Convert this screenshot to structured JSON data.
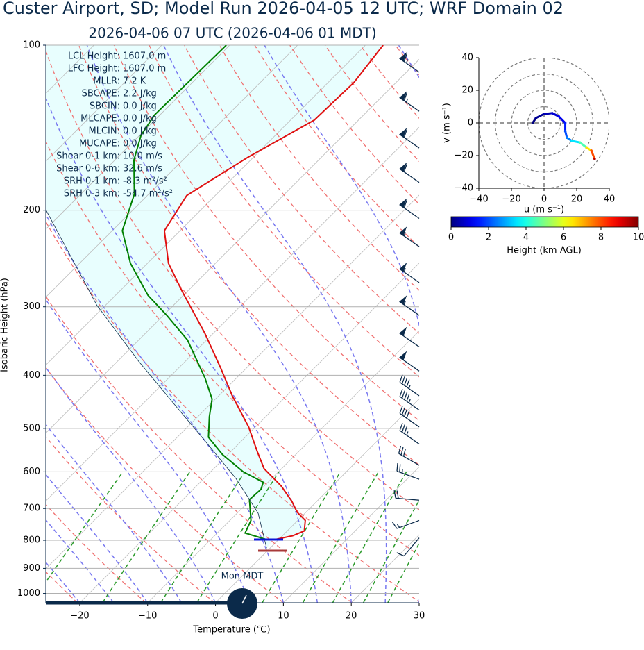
{
  "chart_data": [
    {
      "type": "skewt",
      "title": "Custer Airport, SD; Model Run 2026-04-05 12 UTC; WRF Domain 02",
      "subtitle": "2026-04-06 07 UTC  (2026-04-06 01 MDT)",
      "x_label": "Temperature (℃)",
      "y_label": "Isobaric Height (hPa)",
      "xlim": [
        -25,
        30
      ],
      "ylim": [
        1040,
        100
      ],
      "log_y": true,
      "grid": true,
      "xticks": [
        {
          "value": -20,
          "label": "−20"
        },
        {
          "value": -10,
          "label": "−10"
        },
        0,
        10,
        20,
        30
      ],
      "yticks": [
        100,
        200,
        300,
        400,
        500,
        600,
        700,
        800,
        900,
        1000
      ],
      "shade_color": "#e6fefe",
      "series": [
        {
          "color": "#e01010",
          "pressure": [
            799,
            785,
            769,
            736,
            711,
            679,
            637,
            592,
            550,
            497,
            436,
            388,
            335,
            281,
            250,
            218,
            188,
            160,
            137,
            117,
            100
          ],
          "values": [
            -0.8,
            1.5,
            2.5,
            1.1,
            -1.3,
            -3.7,
            -7.5,
            -12.6,
            -16.2,
            -21,
            -28,
            -33.8,
            -41.3,
            -50.8,
            -56.9,
            -62.3,
            -64.2,
            -60.8,
            -56.5,
            -56.2,
            -57.4
          ]
        },
        {
          "color": "#008000",
          "pressure": [
            799,
            776,
            736,
            674,
            646,
            627,
            600,
            558,
            519,
            476,
            442,
            405,
            345,
            311,
            286,
            250,
            218,
            187,
            162,
            146,
            134,
            100
          ],
          "values": [
            -1.5,
            -5.9,
            -6.9,
            -10.2,
            -10,
            -10.7,
            -15.2,
            -20.8,
            -25.4,
            -28.3,
            -30.5,
            -34.6,
            -42.8,
            -49.5,
            -55.2,
            -62.5,
            -68.5,
            -72.1,
            -77.2,
            -79.8,
            -80.8,
            -80.5
          ]
        },
        {
          "color": "#0b2a4a",
          "pressure": [
            827,
            714,
            618,
            535,
            449,
            377,
            298,
            198
          ],
          "values": [
            -0.5,
            -6.9,
            -15.2,
            -24.4,
            -35.7,
            -46.9,
            -61.3,
            -83.3
          ]
        }
      ],
      "wind_barbs": {
        "color": "#0b2a4a",
        "pressure": [
          112,
          132,
          154,
          178,
          207,
          233,
          271,
          311,
          355,
          393,
          436,
          463,
          497,
          534,
          584,
          619,
          676,
          736,
          792
        ],
        "speed": [
          65,
          65,
          60,
          60,
          60,
          55,
          55,
          55,
          50,
          50,
          45,
          45,
          40,
          35,
          30,
          25,
          20,
          15,
          10
        ],
        "direction": [
          305,
          305,
          305,
          305,
          305,
          305,
          305,
          305,
          305,
          305,
          305,
          305,
          305,
          305,
          300,
          290,
          275,
          250,
          220
        ]
      },
      "stats": [
        {
          "label": "LCL Height:",
          "value": "1607.0 m"
        },
        {
          "label": "LFC Height:",
          "value": "1607.0 m"
        },
        {
          "label": "MLLR:",
          "value": "7.2 K"
        },
        {
          "label": "SBCAPE:",
          "value": "2.2 J/kg"
        },
        {
          "label": "SBCIN:",
          "value": "0.0 J/kg"
        },
        {
          "label": "MLCAPE:",
          "value": "0.0 J/kg"
        },
        {
          "label": "MLCIN:",
          "value": "0.0 J/kg"
        },
        {
          "label": "MUCAPE:",
          "value": "0.0 J/kg"
        },
        {
          "label": "Shear 0-1 km:",
          "value": "10.0 m/s"
        },
        {
          "label": "Shear 0-6 km:",
          "value": "32.6 m/s"
        },
        {
          "label": "SRH 0-1 km:",
          "value": "-8.3 m²/s²"
        },
        {
          "label": "SRH 0-3 km:",
          "value": "-54.7 m²/s²"
        }
      ],
      "clock_label": "Mon MDT"
    },
    {
      "type": "hodograph",
      "x_label": "u (m s⁻¹)",
      "y_label": "v (m s⁻¹)",
      "xlim": [
        -40,
        40
      ],
      "ylim": [
        -40,
        40
      ],
      "xticks": [
        {
          "value": -40,
          "label": "−40"
        },
        {
          "value": -20,
          "label": "−20"
        },
        0,
        20,
        40
      ],
      "yticks": [
        {
          "value": -40,
          "label": "−40"
        },
        {
          "value": -20,
          "label": "−20"
        },
        0,
        20,
        40
      ],
      "colormap": "jet",
      "u": [
        -7,
        -5,
        0,
        5,
        9,
        13,
        13,
        14,
        17,
        22,
        26,
        29,
        31
      ],
      "v": [
        0,
        3,
        5.5,
        6,
        4,
        0,
        -5,
        -9,
        -11,
        -12,
        -15,
        -17,
        -22
      ],
      "height": [
        0,
        0.2,
        0.5,
        0.8,
        1.1,
        1.5,
        2,
        2.5,
        3.5,
        4.5,
        6.5,
        8,
        9.5
      ],
      "colorbar": {
        "label": "Height (km AGL)",
        "lim": [
          0,
          10
        ],
        "ticks": [
          0,
          2,
          4,
          6,
          8,
          10
        ]
      }
    }
  ]
}
